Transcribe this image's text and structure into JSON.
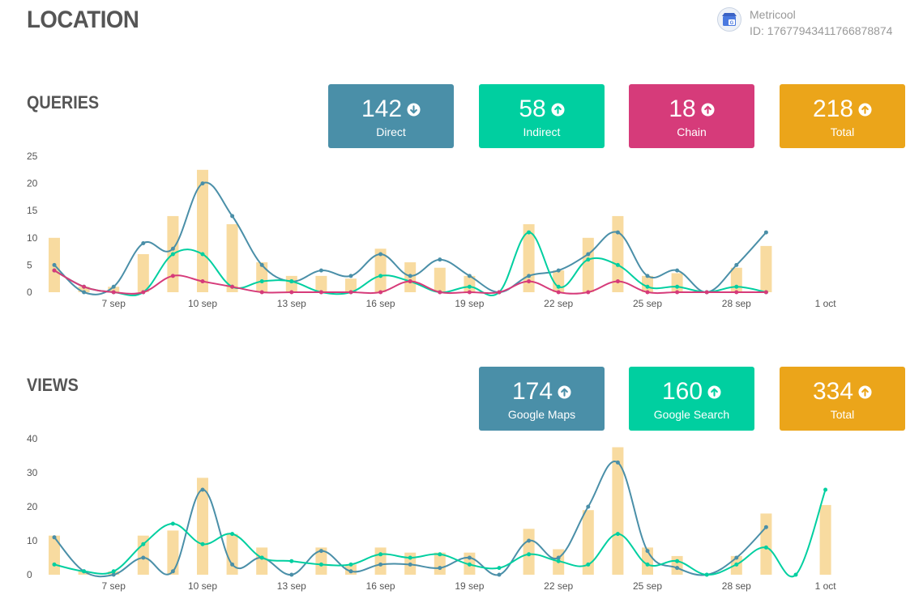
{
  "page": {
    "title": "LOCATION"
  },
  "account": {
    "name": "Metricool",
    "id": "ID: 17677943411766878874",
    "logo_icon": "google-my-business-icon"
  },
  "queries": {
    "title": "QUERIES",
    "cards": [
      {
        "value": "142",
        "label": "Direct",
        "trend": "down",
        "color": "#4a8fa8",
        "icon": "arrow-down-circle-icon"
      },
      {
        "value": "58",
        "label": "Indirect",
        "trend": "up",
        "color": "#00cfa0",
        "icon": "arrow-up-circle-icon"
      },
      {
        "value": "18",
        "label": "Chain",
        "trend": "up",
        "color": "#d63b7a",
        "icon": "arrow-up-circle-icon"
      },
      {
        "value": "218",
        "label": "Total",
        "trend": "up",
        "color": "#eba51a",
        "icon": "arrow-up-circle-icon"
      }
    ]
  },
  "views": {
    "title": "VIEWS",
    "cards": [
      {
        "value": "174",
        "label": "Google Maps",
        "trend": "up",
        "color": "#4a8fa8",
        "icon": "arrow-up-circle-icon"
      },
      {
        "value": "160",
        "label": "Google Search",
        "trend": "up",
        "color": "#00cfa0",
        "icon": "arrow-up-circle-icon"
      },
      {
        "value": "334",
        "label": "Total",
        "trend": "up",
        "color": "#eba51a",
        "icon": "arrow-up-circle-icon"
      }
    ]
  },
  "chart_data": [
    {
      "type": "bar+line",
      "ylim": [
        0,
        25
      ],
      "yticks": [
        "0",
        "5",
        "10",
        "15",
        "20",
        "25"
      ],
      "x_count": 27,
      "xtick_labels": [
        {
          "index": 2,
          "label": "7 sep"
        },
        {
          "index": 5,
          "label": "10 sep"
        },
        {
          "index": 8,
          "label": "13 sep"
        },
        {
          "index": 11,
          "label": "16 sep"
        },
        {
          "index": 14,
          "label": "19 sep"
        },
        {
          "index": 17,
          "label": "22 sep"
        },
        {
          "index": 20,
          "label": "25 sep"
        },
        {
          "index": 23,
          "label": "28 sep"
        },
        {
          "index": 26,
          "label": "1 oct"
        }
      ],
      "bar_series": {
        "values": [
          10,
          1,
          1,
          7,
          14,
          22.5,
          12.5,
          5.5,
          3,
          3,
          2.5,
          8,
          5.5,
          4.5,
          3,
          0,
          12.5,
          4,
          10,
          14,
          3,
          3.5,
          0,
          4.5,
          8.5
        ],
        "color": "#f8dba0"
      },
      "line_series": [
        {
          "values": [
            5,
            0,
            1,
            9,
            8,
            20,
            14,
            5,
            2,
            4,
            3,
            7,
            3,
            6,
            3,
            0,
            3,
            4,
            7,
            11,
            3,
            4,
            0,
            5,
            11
          ],
          "color": "#4a8fa8"
        },
        {
          "values": [
            4,
            1,
            0,
            0,
            7,
            7,
            1,
            2,
            2,
            0,
            0,
            3,
            2,
            0,
            1,
            0,
            11,
            1,
            6,
            5,
            1,
            1,
            0,
            1,
            0
          ],
          "color": "#00cfa0"
        },
        {
          "values": [
            4,
            1,
            0,
            0,
            3,
            2,
            1,
            0,
            0,
            0,
            0,
            0,
            2,
            0,
            0,
            0,
            2,
            0,
            0,
            2,
            0,
            0,
            0,
            0,
            0
          ],
          "color": "#d63b7a"
        }
      ]
    },
    {
      "type": "bar+line",
      "ylim": [
        0,
        40
      ],
      "yticks": [
        "0",
        "10",
        "20",
        "30",
        "40"
      ],
      "x_count": 27,
      "xtick_labels": [
        {
          "index": 2,
          "label": "7 sep"
        },
        {
          "index": 5,
          "label": "10 sep"
        },
        {
          "index": 8,
          "label": "13 sep"
        },
        {
          "index": 11,
          "label": "16 sep"
        },
        {
          "index": 14,
          "label": "19 sep"
        },
        {
          "index": 17,
          "label": "22 sep"
        },
        {
          "index": 20,
          "label": "25 sep"
        },
        {
          "index": 23,
          "label": "28 sep"
        },
        {
          "index": 26,
          "label": "1 oct"
        }
      ],
      "bar_series": {
        "values": [
          11.5,
          1,
          1,
          11.5,
          13,
          28.5,
          12,
          8,
          0,
          8,
          3,
          8,
          6.5,
          6.5,
          6.5,
          0,
          13.5,
          7.5,
          19,
          37.5,
          8,
          5.5,
          0,
          5.5,
          18,
          0,
          20.5
        ],
        "color": "#f8dba0"
      },
      "line_series": [
        {
          "values": [
            11,
            1,
            0,
            5,
            1,
            25,
            3,
            5,
            0,
            7,
            1,
            3,
            3,
            2,
            5,
            0,
            10,
            5,
            20,
            33,
            7,
            2,
            0,
            5,
            14
          ],
          "color": "#4a8fa8"
        },
        {
          "values": [
            3,
            1,
            1,
            9,
            15,
            9,
            12,
            5,
            4,
            3,
            3,
            6,
            5,
            6,
            3,
            2,
            6,
            4,
            3,
            12,
            3,
            4,
            0,
            3,
            8,
            0,
            25
          ],
          "color": "#00cfa0"
        }
      ]
    }
  ]
}
